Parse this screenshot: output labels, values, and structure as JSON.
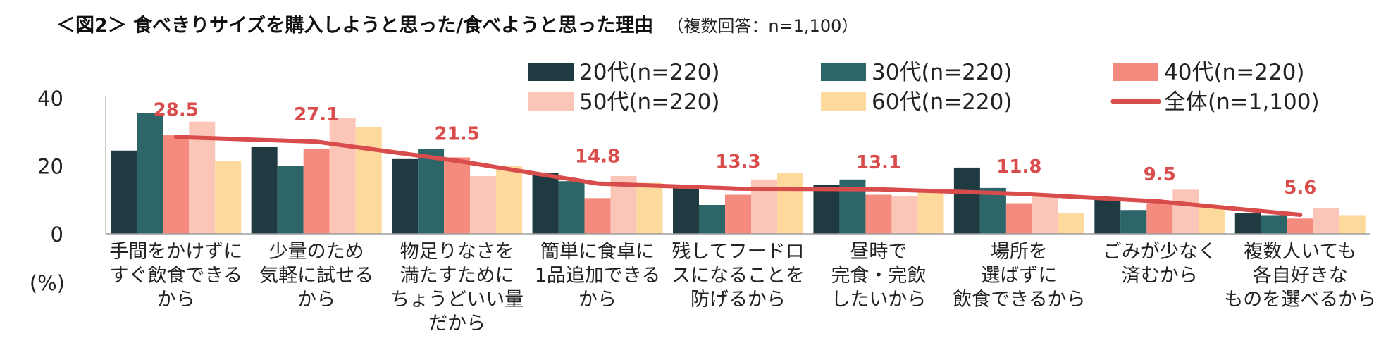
{
  "title": "＜図2＞ 食べきりサイズを購入しようと思った/食べようと思った理由",
  "subtitle": "（複数回答：n=1,100）",
  "colors": {
    "s20": "#1f3b41",
    "s30": "#2c6669",
    "s40": "#f58a7f",
    "s50": "#fbc6b8",
    "s60": "#fdd99b",
    "overall": "#d94c4c"
  },
  "chart_data": {
    "type": "bar",
    "title": "＜図2＞ 食べきりサイズを購入しようと思った/食べようと思った理由",
    "subtitle": "（複数回答：n=1,100）",
    "xlabel": "",
    "ylabel": "(%)",
    "ylim": [
      0,
      40
    ],
    "yticks": [
      0,
      20,
      40
    ],
    "grid": false,
    "legend_position": "top-right",
    "categories": [
      [
        "手間をかけずに",
        "すぐ飲食できる",
        "から"
      ],
      [
        "少量のため",
        "気軽に試せる",
        "から"
      ],
      [
        "物足りなさを",
        "満たすために",
        "ちょうどいい量",
        "だから"
      ],
      [
        "簡単に食卓に",
        "1品追加できる",
        "から"
      ],
      [
        "残してフードロ",
        "スになることを",
        "防げるから"
      ],
      [
        "昼時で",
        "完食・完飲",
        "したいから"
      ],
      [
        "場所を",
        "選ばずに",
        "飲食できるから"
      ],
      [
        "ごみが少なく",
        "済むから"
      ],
      [
        "複数人いても",
        "各自好きな",
        "ものを選べるから"
      ]
    ],
    "series": [
      {
        "name": "20代(n=220)",
        "type": "bar",
        "color_key": "s20",
        "values": [
          24.5,
          25.5,
          22.0,
          18.0,
          14.5,
          14.5,
          19.5,
          10.5,
          6.0
        ]
      },
      {
        "name": "30代(n=220)",
        "type": "bar",
        "color_key": "s30",
        "values": [
          35.5,
          20.0,
          25.0,
          15.5,
          8.5,
          16.0,
          13.5,
          7.0,
          5.5
        ]
      },
      {
        "name": "40代(n=220)",
        "type": "bar",
        "color_key": "s40",
        "values": [
          29.0,
          25.0,
          22.5,
          10.5,
          11.5,
          11.5,
          9.0,
          9.0,
          4.5
        ]
      },
      {
        "name": "50代(n=220)",
        "type": "bar",
        "color_key": "s50",
        "values": [
          33.0,
          34.0,
          17.0,
          17.0,
          16.0,
          11.0,
          11.5,
          13.0,
          7.5
        ]
      },
      {
        "name": "60代(n=220)",
        "type": "bar",
        "color_key": "s60",
        "values": [
          21.5,
          31.5,
          20.0,
          15.0,
          18.0,
          12.5,
          6.0,
          8.0,
          5.5
        ]
      },
      {
        "name": "全体(n=1,100)",
        "type": "line",
        "color_key": "overall",
        "values": [
          28.5,
          27.1,
          21.5,
          14.8,
          13.3,
          13.1,
          11.8,
          9.5,
          5.6
        ]
      }
    ],
    "data_labels": [
      "28.5",
      "27.1",
      "21.5",
      "14.8",
      "13.3",
      "13.1",
      "11.8",
      "9.5",
      "5.6"
    ]
  }
}
